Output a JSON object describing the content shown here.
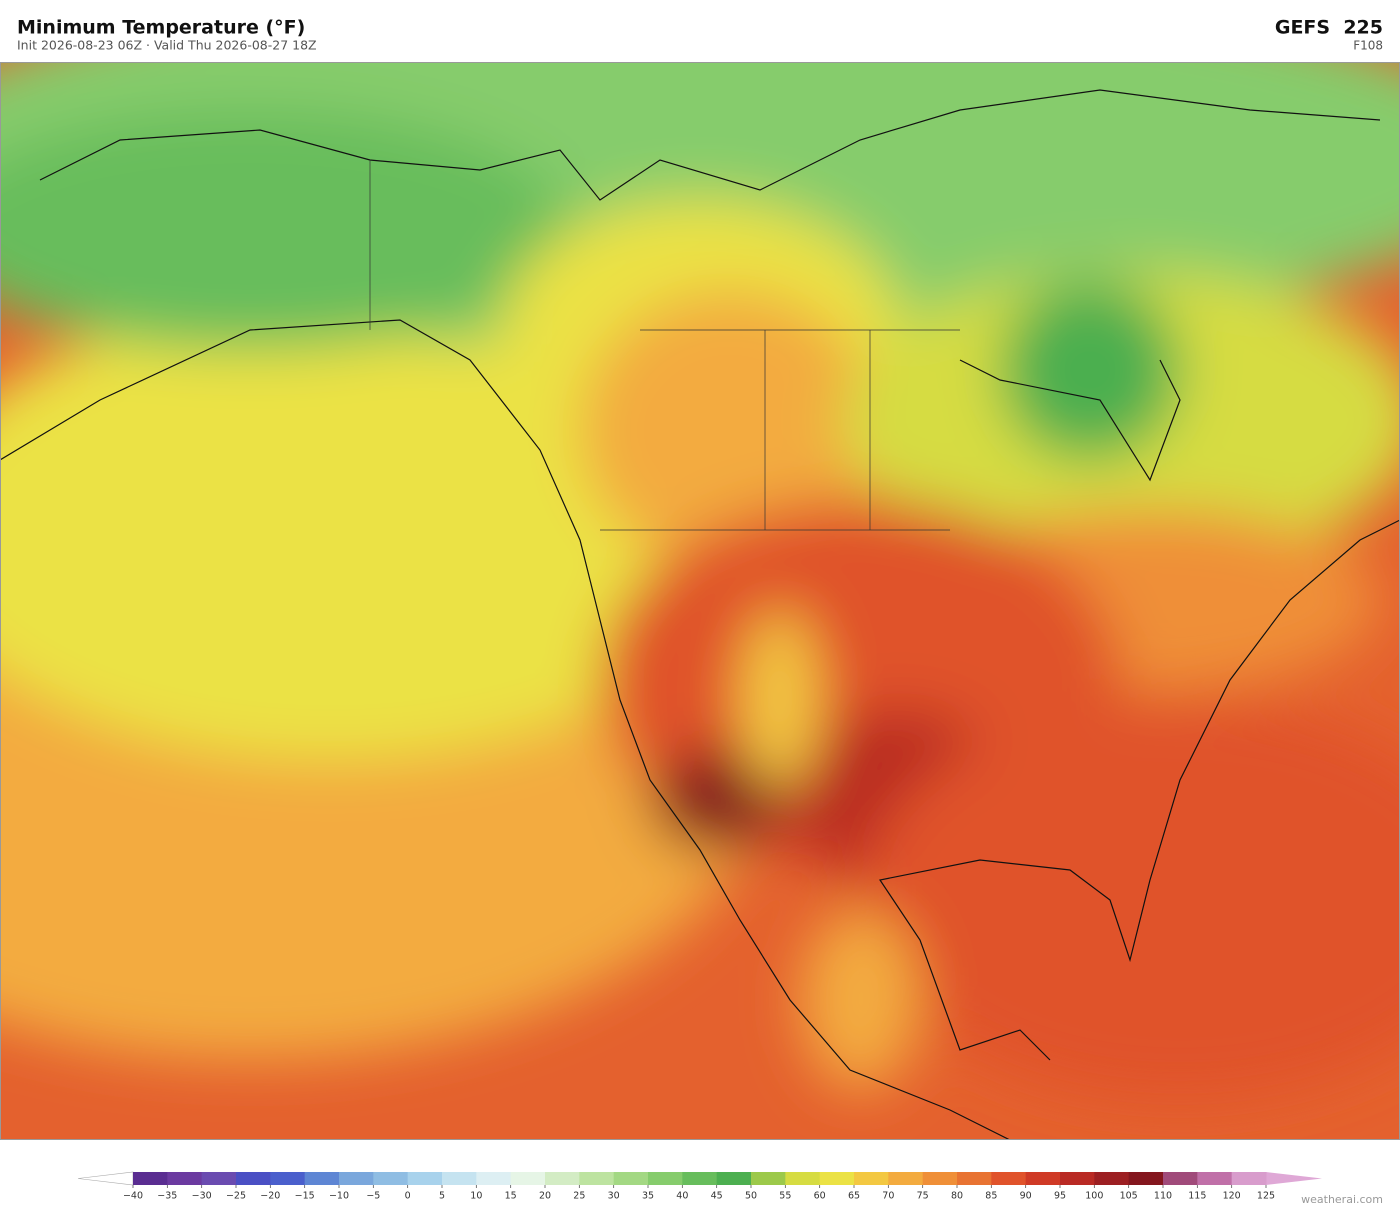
{
  "header": {
    "title": "Minimum Temperature  (°F)",
    "subtitle": "Init 2026-08-23 06Z  ·  Valid Thu 2026-08-27 18Z",
    "model": "GEFS  225",
    "forecast_hour": "F108"
  },
  "colorbar": {
    "ticks": [
      {
        "value": -40,
        "label": "−40"
      },
      {
        "value": -35,
        "label": "−35"
      },
      {
        "value": -30,
        "label": "−30"
      },
      {
        "value": -25,
        "label": "−25"
      },
      {
        "value": -20,
        "label": "−20"
      },
      {
        "value": -15,
        "label": "−15"
      },
      {
        "value": -10,
        "label": "−10"
      },
      {
        "value": -5,
        "label": "−5"
      },
      0,
      5,
      10,
      15,
      20,
      25,
      30,
      35,
      40,
      45,
      50,
      55,
      60,
      65,
      70,
      75,
      80,
      85,
      90,
      95,
      100,
      105,
      110,
      115,
      120,
      125
    ],
    "colors": [
      "#5a2d91",
      "#6b3aa0",
      "#6a4bb0",
      "#4a4fc4",
      "#4a5fcc",
      "#5e86d4",
      "#7aa7dc",
      "#8fbde3",
      "#a8d2ec",
      "#c5e3f0",
      "#ddeff3",
      "#e6f5e6",
      "#d3ecc4",
      "#bde3a0",
      "#a3d883",
      "#86cc6c",
      "#67bd5c",
      "#4caf50",
      "#9cc94a",
      "#d6dc42",
      "#ebe245",
      "#f3c842",
      "#f3ab3f",
      "#ef8f38",
      "#e87332",
      "#e0532b",
      "#cf3a26",
      "#b92a24",
      "#9c1f22",
      "#84161e",
      "#a04a7a",
      "#c070a8",
      "#d89ccc"
    ],
    "under_color": "#ffffff",
    "over_color": "#dfa8d6"
  },
  "credit": "weatherai.com"
}
